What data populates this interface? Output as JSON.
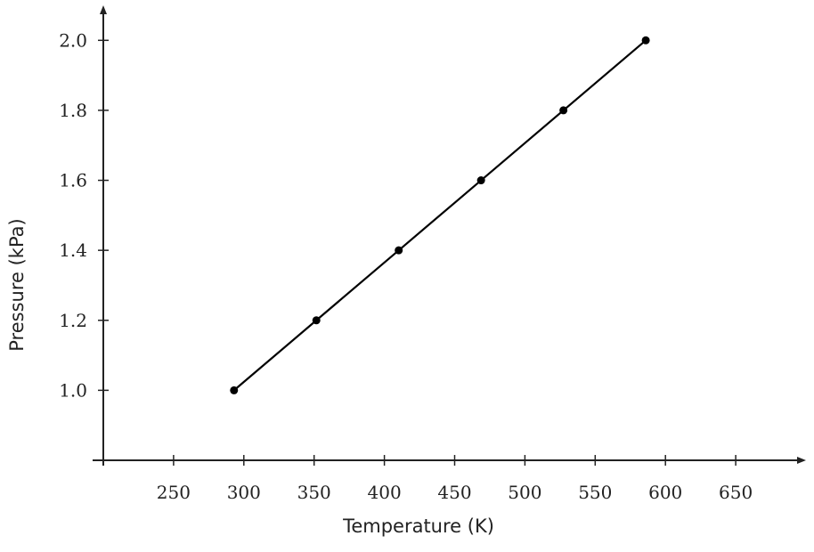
{
  "chart_data": {
    "type": "line",
    "x_label": "Temperature (K)",
    "y_label": "Pressure (kPa)",
    "x": [
      293,
      351.6,
      410.2,
      468.8,
      527.4,
      586
    ],
    "series": [
      {
        "color": "#000000",
        "values": [
          1,
          1.2,
          1.4,
          1.6,
          1.8,
          2
        ]
      }
    ],
    "markers": true,
    "xlim": [
      200,
      700
    ],
    "ylim": [
      0.8,
      2.1
    ],
    "xticks": [
      250,
      300,
      350,
      400,
      450,
      500,
      550,
      600,
      650
    ],
    "yticks": [
      {
        "value": 1,
        "label": "1.0"
      },
      1.2,
      1.4,
      1.6,
      1.8,
      {
        "value": 2,
        "label": "2.0"
      }
    ],
    "grid": false
  }
}
